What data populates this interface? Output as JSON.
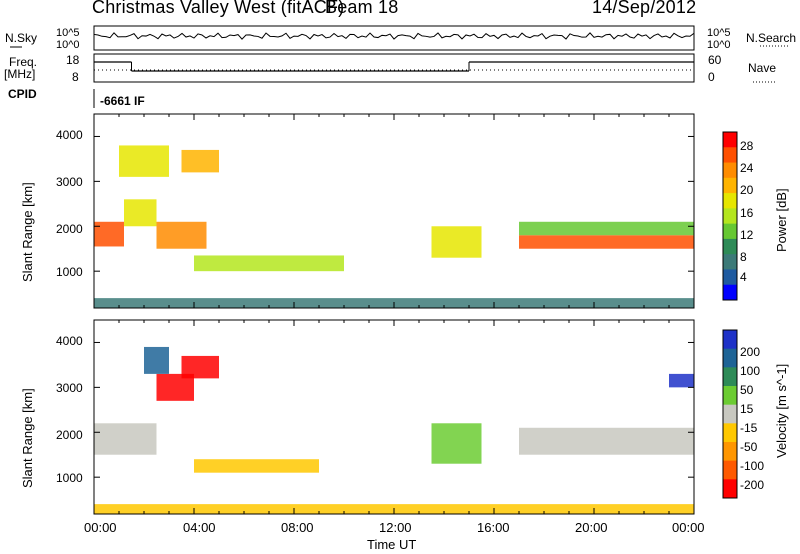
{
  "header": {
    "station": "Christmas Valley West (fitACF)",
    "beam": "Beam 18",
    "date": "14/Sep/2012"
  },
  "params": {
    "nsky_label": "N.Sky",
    "nsearch_label": "N.Search",
    "freq_label_line1": "Freq.",
    "freq_label_line2": "[MHz]",
    "nave_label": "Nave",
    "cpid_label": "CPID",
    "cpid_value": "-6661 IF",
    "noise_ticks_left": [
      "10^5",
      "10^0"
    ],
    "noise_ticks_right": [
      "10^5",
      "10^0"
    ],
    "freq_ticks": [
      "18",
      "8"
    ],
    "nave_ticks": [
      "60",
      "0"
    ]
  },
  "power_panel": {
    "ylabel": "Slant Range [km]",
    "yticks": [
      "4000",
      "3000",
      "2000",
      "1000"
    ],
    "colorbar_label": "Power [dB]",
    "colorbar_ticks": [
      "28",
      "24",
      "20",
      "16",
      "12",
      "8",
      "4"
    ],
    "colorbar_colors": [
      "#ff0000",
      "#ff5000",
      "#ff8c00",
      "#ffb400",
      "#e6e600",
      "#b4e61e",
      "#66c832",
      "#2e8b57",
      "#3c7a78",
      "#1e5aa0",
      "#0000ff"
    ]
  },
  "velocity_panel": {
    "ylabel": "Slant Range [km]",
    "yticks": [
      "4000",
      "3000",
      "2000",
      "1000"
    ],
    "colorbar_label": "Velocity [m s^-1]",
    "colorbar_ticks": [
      "200",
      "100",
      "50",
      "15",
      "-15",
      "-50",
      "-100",
      "-200"
    ],
    "colorbar_colors": [
      "#1e32c8",
      "#1e6496",
      "#2e8b57",
      "#6ccc32",
      "#c8c8c0",
      "#ffc800",
      "#ff9600",
      "#ff5a00",
      "#ff0000"
    ]
  },
  "xaxis": {
    "label": "Time UT",
    "ticks": [
      "00:00",
      "04:00",
      "08:00",
      "12:00",
      "16:00",
      "20:00",
      "00:00"
    ]
  },
  "chart_data": [
    {
      "type": "heatmap",
      "title": "Power",
      "xlabel": "Time UT",
      "ylabel": "Slant Range [km]",
      "xlim": [
        0,
        24
      ],
      "ylim": [
        180,
        4500
      ],
      "colorbar_label": "Power [dB]",
      "colorbar_range": [
        0,
        32
      ],
      "bands": [
        {
          "t0": 0.0,
          "t1": 1.2,
          "r0": 1550,
          "r1": 2100,
          "power": 28
        },
        {
          "t0": 1.2,
          "t1": 2.5,
          "r0": 2000,
          "r1": 2600,
          "power": 20
        },
        {
          "t0": 2.5,
          "t1": 4.5,
          "r0": 1500,
          "r1": 2100,
          "power": 26
        },
        {
          "t0": 1.0,
          "t1": 3.0,
          "r0": 3100,
          "r1": 3800,
          "power": 20
        },
        {
          "t0": 3.5,
          "t1": 5.0,
          "r0": 3200,
          "r1": 3700,
          "power": 22
        },
        {
          "t0": 4.0,
          "t1": 10.0,
          "r0": 1000,
          "r1": 1350,
          "power": 16
        },
        {
          "t0": 13.5,
          "t1": 15.5,
          "r0": 1300,
          "r1": 2000,
          "power": 20
        },
        {
          "t0": 17.0,
          "t1": 24.0,
          "r0": 1500,
          "r1": 1800,
          "power": 28
        },
        {
          "t0": 17.0,
          "t1": 24.0,
          "r0": 1800,
          "r1": 2100,
          "power": 12
        },
        {
          "t0": 0.0,
          "t1": 24.0,
          "r0": 180,
          "r1": 400,
          "power": 6
        }
      ]
    },
    {
      "type": "heatmap",
      "title": "Velocity",
      "xlabel": "Time UT",
      "ylabel": "Slant Range [km]",
      "xlim": [
        0,
        24
      ],
      "ylim": [
        180,
        4500
      ],
      "colorbar_label": "Velocity [m s^-1]",
      "colorbar_range": [
        -200,
        200
      ],
      "bands": [
        {
          "t0": 0.0,
          "t1": 2.5,
          "r0": 1500,
          "r1": 2200,
          "velocity": 0
        },
        {
          "t0": 2.5,
          "t1": 4.0,
          "r0": 2700,
          "r1": 3300,
          "velocity": -180
        },
        {
          "t0": 3.5,
          "t1": 5.0,
          "r0": 3200,
          "r1": 3700,
          "velocity": -200
        },
        {
          "t0": 2.0,
          "t1": 3.0,
          "r0": 3300,
          "r1": 3900,
          "velocity": 150
        },
        {
          "t0": 4.0,
          "t1": 9.0,
          "r0": 1100,
          "r1": 1400,
          "velocity": -30
        },
        {
          "t0": 13.5,
          "t1": 15.5,
          "r0": 1300,
          "r1": 2200,
          "velocity": 30
        },
        {
          "t0": 17.0,
          "t1": 24.0,
          "r0": 1500,
          "r1": 2100,
          "velocity": 0
        },
        {
          "t0": 23.0,
          "t1": 24.0,
          "r0": 3000,
          "r1": 3300,
          "velocity": 180
        },
        {
          "t0": 0.0,
          "t1": 24.0,
          "r0": 180,
          "r1": 400,
          "velocity": -40
        }
      ]
    }
  ]
}
